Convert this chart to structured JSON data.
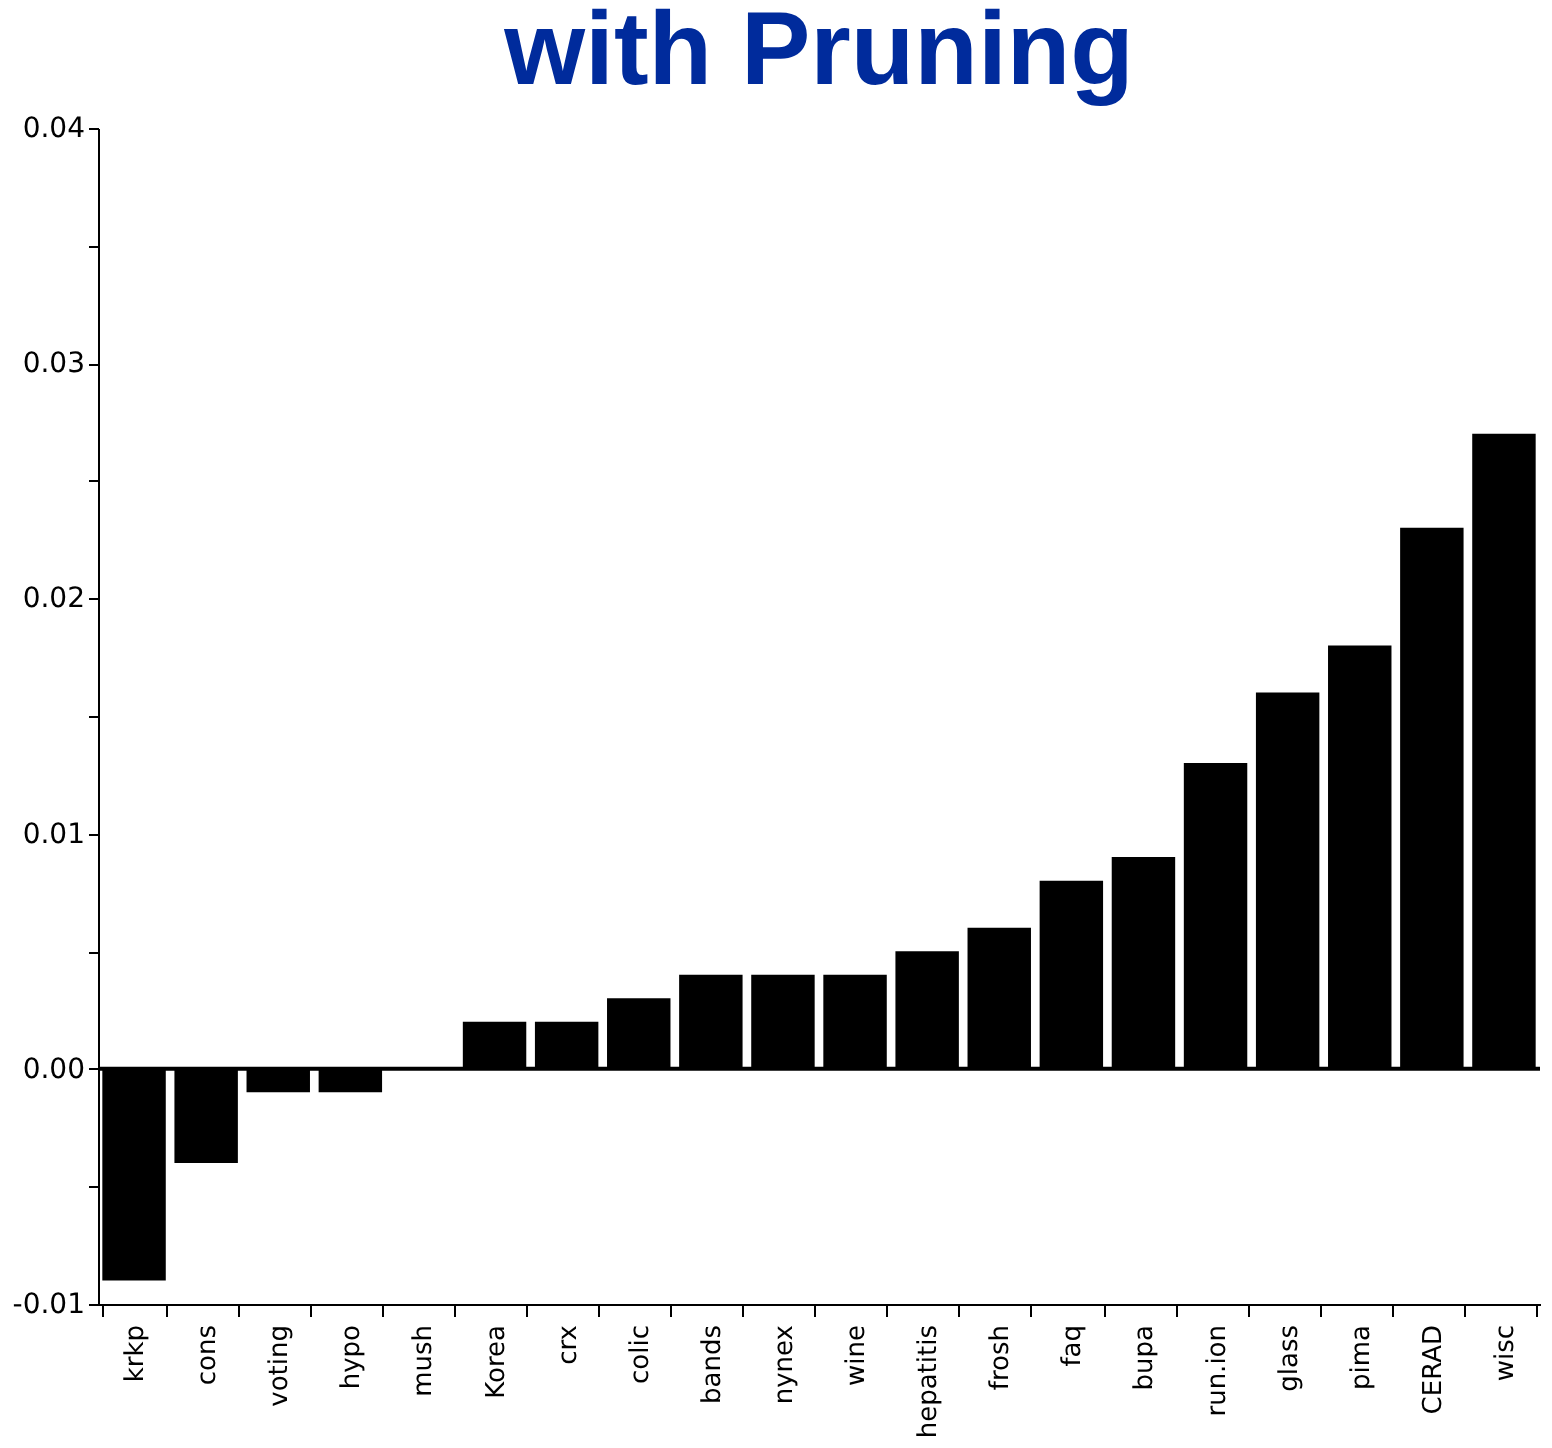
{
  "chart_data": {
    "type": "bar",
    "title": "with Pruning",
    "categories": [
      "krkp",
      "cons",
      "voting",
      "hypo",
      "mush",
      "Korea",
      "crx",
      "colic",
      "bands",
      "nynex",
      "wine",
      "hepatitis",
      "frosh",
      "faq",
      "bupa",
      "run.ion",
      "glass",
      "pima",
      "CERAD",
      "wisc"
    ],
    "values": [
      -0.009,
      -0.004,
      -0.001,
      -0.001,
      0,
      0.002,
      0.002,
      0.003,
      0.004,
      0.004,
      0.004,
      0.005,
      0.006,
      0.008,
      0.009,
      0.013,
      0.016,
      0.018,
      0.023,
      0.027
    ],
    "color": "#000000",
    "ylim": [
      -0.01,
      0.04
    ],
    "yticks": [
      {
        "value": -0.01,
        "label": "-0.01"
      },
      {
        "value": -0.005,
        "label": null
      },
      {
        "value": 0,
        "label": "0.00"
      },
      {
        "value": 0.005,
        "label": null
      },
      {
        "value": 0.01,
        "label": "0.01"
      },
      {
        "value": 0.015,
        "label": null
      },
      {
        "value": 0.02,
        "label": "0.02"
      },
      {
        "value": 0.025,
        "label": null
      },
      {
        "value": 0.03,
        "label": "0.03"
      },
      {
        "value": 0.035,
        "label": null
      },
      {
        "value": 0.04,
        "label": "0.04"
      }
    ],
    "ref_lines": [
      {
        "axis": "y",
        "value": 0,
        "color": "#000000"
      }
    ],
    "grid": false
  }
}
